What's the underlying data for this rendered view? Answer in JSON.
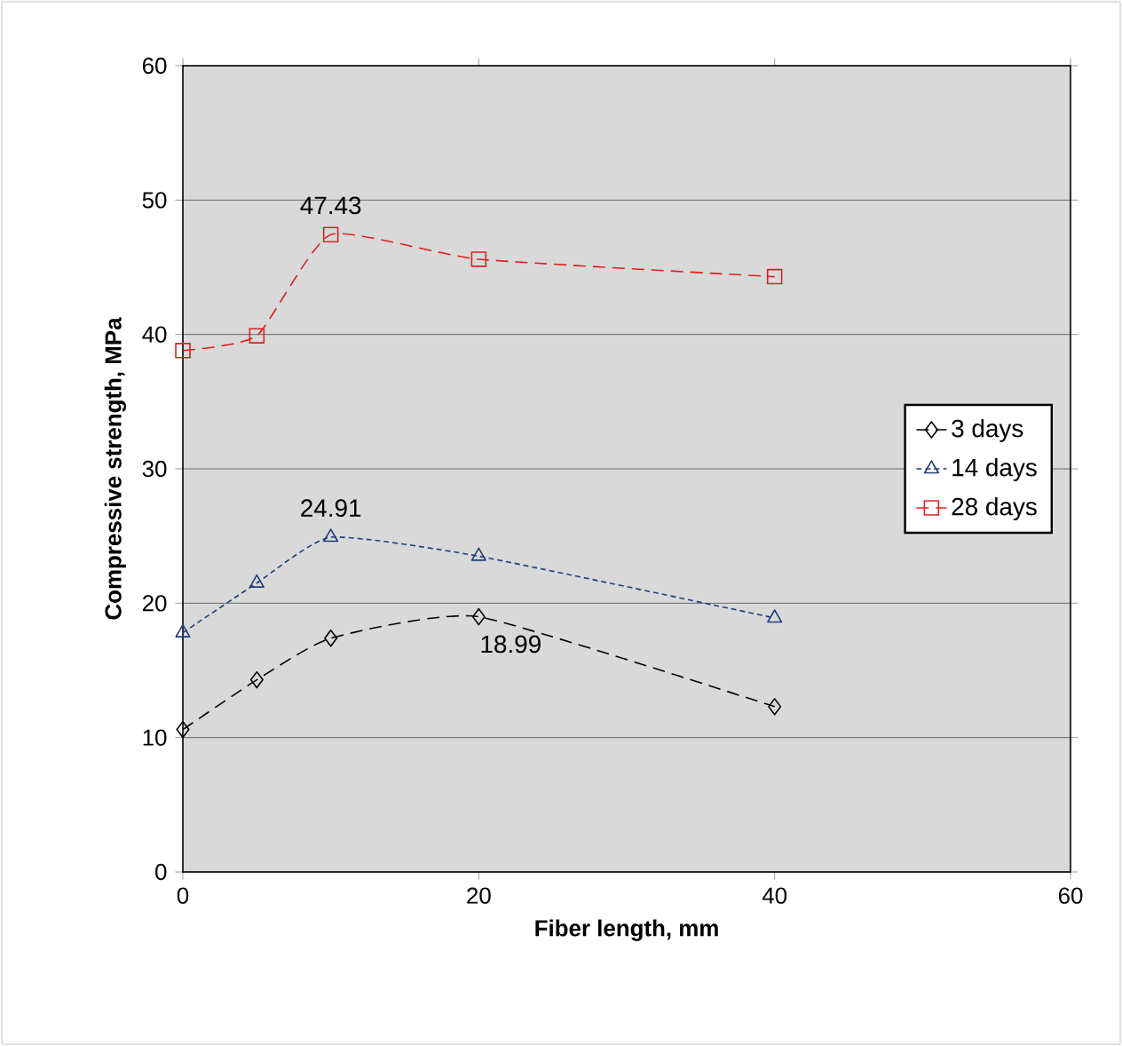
{
  "chart_data": {
    "type": "line",
    "xlabel": "Fiber length, mm",
    "ylabel": "Compressive strength, MPa",
    "x": [
      0,
      5,
      10,
      20,
      40
    ],
    "series": [
      {
        "name": "3 days",
        "color": "#000000",
        "marker": "diamond",
        "line_style": "dashed",
        "values": [
          10.6,
          14.3,
          17.4,
          18.99,
          12.3
        ],
        "value_labels": [
          null,
          null,
          null,
          "18.99",
          null
        ]
      },
      {
        "name": "14 days",
        "color": "#1f3d7a",
        "marker": "triangle",
        "line_style": "dotted",
        "values": [
          17.8,
          21.5,
          24.91,
          23.5,
          18.9
        ],
        "value_labels": [
          null,
          null,
          "24.91",
          null,
          null
        ]
      },
      {
        "name": "28 days",
        "color": "#e02020",
        "marker": "square",
        "line_style": "dashed",
        "values": [
          38.8,
          39.9,
          47.43,
          45.6,
          44.3
        ],
        "value_labels": [
          null,
          null,
          "47.43",
          null,
          null
        ]
      }
    ],
    "xlim": [
      0,
      60
    ],
    "ylim": [
      0,
      60
    ],
    "xticks": [
      0,
      20,
      40,
      60
    ],
    "yticks": [
      0,
      10,
      20,
      30,
      40,
      50,
      60
    ],
    "grid": "y",
    "legend": "right"
  }
}
